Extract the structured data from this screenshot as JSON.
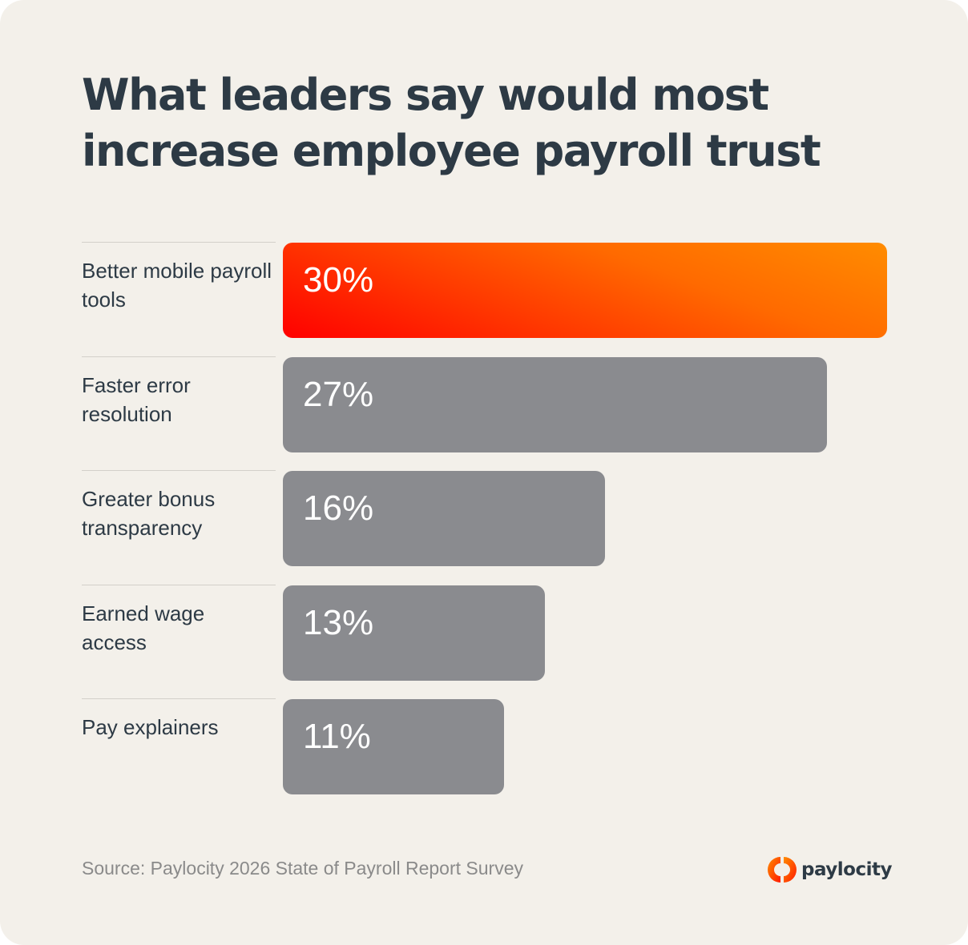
{
  "chart_data": {
    "type": "bar",
    "orientation": "horizontal",
    "title": "What leaders say would most increase employee payroll trust",
    "categories": [
      "Better mobile payroll tools",
      "Faster error resolution",
      "Greater bonus transparency",
      "Earned wage access",
      "Pay explainers"
    ],
    "values": [
      30,
      27,
      16,
      13,
      11
    ],
    "value_labels": [
      "30%",
      "27%",
      "16%",
      "13%",
      "11%"
    ],
    "unit": "%",
    "xlabel": "",
    "ylabel": "",
    "xlim": [
      0,
      30
    ],
    "grid": false,
    "legend": "none",
    "colors": {
      "highlight_start": "#ff0000",
      "highlight_end": "#ff8c00",
      "default": "#8a8b8f"
    },
    "highlight_index": 0
  },
  "footer": {
    "source": "Source: Paylocity 2026 State of Payroll Report Survey",
    "logo_text": "paylocity"
  }
}
